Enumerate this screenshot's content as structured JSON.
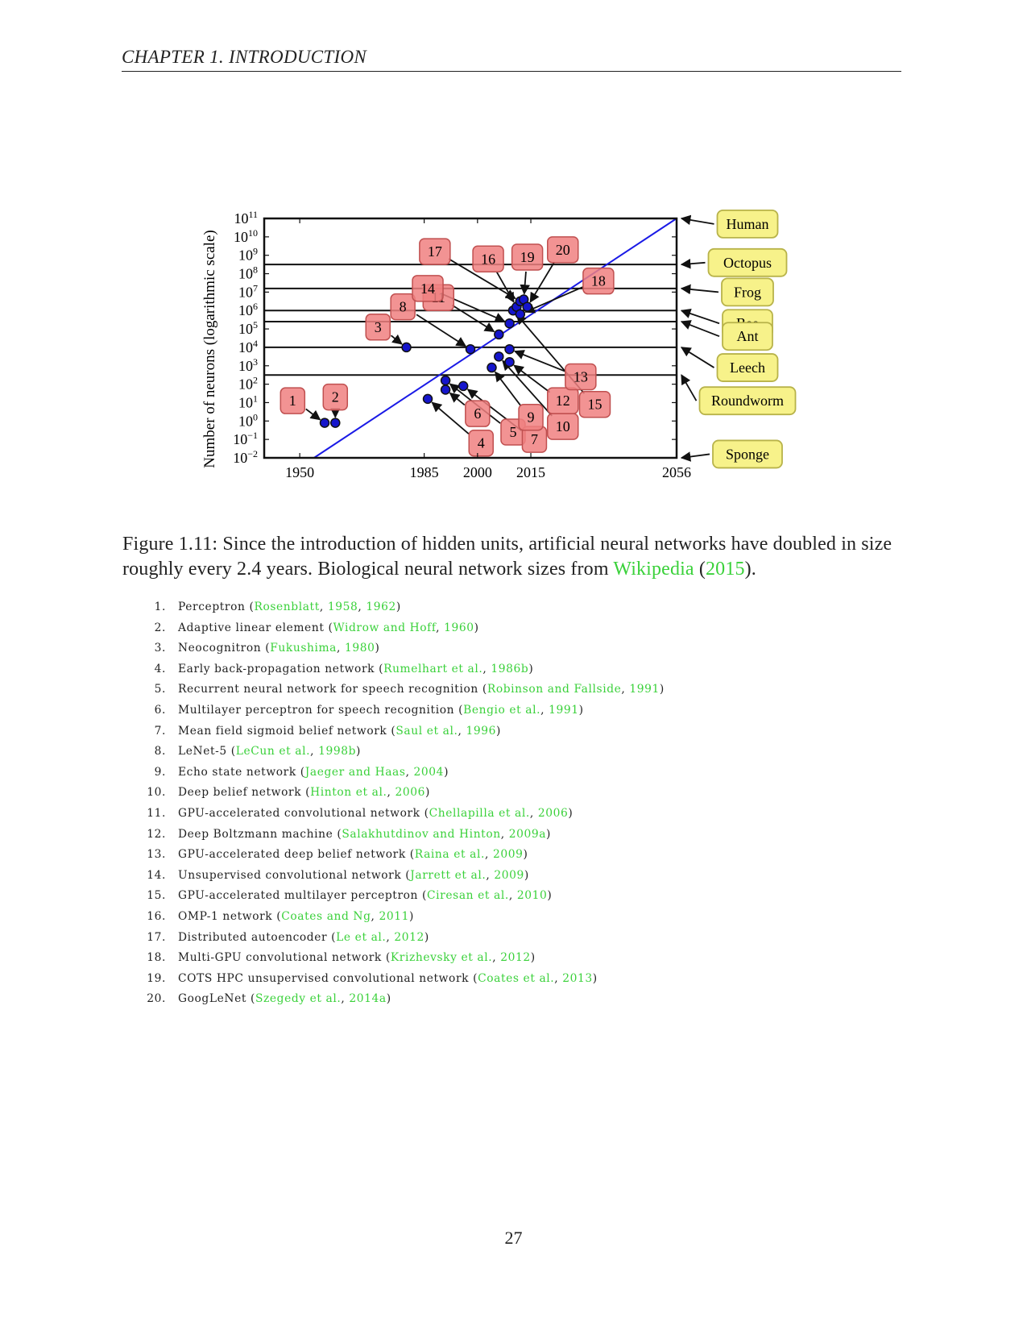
{
  "running_head": "CHAPTER 1.   INTRODUCTION",
  "page_number": "27",
  "caption": {
    "prefix": "Figure 1.11:  Since the introduction of hidden units, artificial neural networks have doubled in size roughly every 2.4 years.  Biological neural network sizes from ",
    "cite_name": "Wikipedia",
    "open_paren": " (",
    "cite_year": "2015",
    "suffix": ")."
  },
  "chart_data": {
    "type": "scatter",
    "ylabel": "Number of neurons (logarithmic scale)",
    "xlabel": "",
    "y_scale": "log10",
    "x_ticks": [
      1950,
      1985,
      2000,
      2015,
      2056
    ],
    "y_ticks": [
      "10^{-2}",
      "10^{-1}",
      "10^{0}",
      "10^{1}",
      "10^{2}",
      "10^{3}",
      "10^{4}",
      "10^{5}",
      "10^{6}",
      "10^{7}",
      "10^{8}",
      "10^{9}",
      "10^{10}",
      "10^{11}"
    ],
    "y_tick_labels": [
      {
        "base": "10",
        "exp": "−2"
      },
      {
        "base": "10",
        "exp": "−1"
      },
      {
        "base": "10",
        "exp": "0"
      },
      {
        "base": "10",
        "exp": "1"
      },
      {
        "base": "10",
        "exp": "2"
      },
      {
        "base": "10",
        "exp": "3"
      },
      {
        "base": "10",
        "exp": "4"
      },
      {
        "base": "10",
        "exp": "5"
      },
      {
        "base": "10",
        "exp": "6"
      },
      {
        "base": "10",
        "exp": "7"
      },
      {
        "base": "10",
        "exp": "8"
      },
      {
        "base": "10",
        "exp": "9"
      },
      {
        "base": "10",
        "exp": "10"
      },
      {
        "base": "10",
        "exp": "11"
      }
    ],
    "xlim": [
      1940,
      2056
    ],
    "ylim_log10": [
      -2,
      11
    ],
    "trend_line": {
      "x": [
        1954,
        2056
      ],
      "log10_y": [
        -2,
        11
      ]
    },
    "networks": [
      {
        "id": "1",
        "year": 1957,
        "log10_neurons": -0.1,
        "label_year": 1948,
        "label_log10": 1.1
      },
      {
        "id": "2",
        "year": 1960,
        "log10_neurons": -0.1,
        "label_year": 1960,
        "label_log10": 1.3
      },
      {
        "id": "3",
        "year": 1980,
        "log10_neurons": 4.0,
        "label_year": 1972,
        "label_log10": 5.1
      },
      {
        "id": "4",
        "year": 1986,
        "log10_neurons": 1.2,
        "label_year": 2001,
        "label_log10": -1.2
      },
      {
        "id": "5",
        "year": 1991,
        "log10_neurons": 2.2,
        "label_year": 2010,
        "label_log10": -0.6
      },
      {
        "id": "6",
        "year": 1991,
        "log10_neurons": 1.7,
        "label_year": 2000,
        "label_log10": 0.4
      },
      {
        "id": "7",
        "year": 1996,
        "log10_neurons": 1.9,
        "label_year": 2016,
        "label_log10": -1.0
      },
      {
        "id": "8",
        "year": 1998,
        "log10_neurons": 3.9,
        "label_year": 1979,
        "label_log10": 6.2
      },
      {
        "id": "9",
        "year": 2004,
        "log10_neurons": 2.9,
        "label_year": 2015,
        "label_log10": 0.2
      },
      {
        "id": "10",
        "year": 2006,
        "log10_neurons": 3.5,
        "label_year": 2024,
        "label_log10": -0.3
      },
      {
        "id": "11",
        "year": 2006,
        "log10_neurons": 4.7,
        "label_year": 1989,
        "label_log10": 6.7
      },
      {
        "id": "12",
        "year": 2009,
        "log10_neurons": 3.2,
        "label_year": 2024,
        "label_log10": 1.1
      },
      {
        "id": "13",
        "year": 2009,
        "log10_neurons": 3.9,
        "label_year": 2029,
        "label_log10": 2.4
      },
      {
        "id": "14",
        "year": 2009,
        "log10_neurons": 5.3,
        "label_year": 1986,
        "label_log10": 7.2
      },
      {
        "id": "15",
        "year": 2010,
        "log10_neurons": 6.0,
        "label_year": 2033,
        "label_log10": 0.9
      },
      {
        "id": "16",
        "year": 2011,
        "log10_neurons": 6.2,
        "label_year": 2003,
        "label_log10": 8.8
      },
      {
        "id": "17",
        "year": 2012,
        "log10_neurons": 6.5,
        "label_year": 1988,
        "label_log10": 9.2
      },
      {
        "id": "18",
        "year": 2012,
        "log10_neurons": 5.8,
        "label_year": 2034,
        "label_log10": 7.6
      },
      {
        "id": "19",
        "year": 2013,
        "log10_neurons": 6.6,
        "label_year": 2014,
        "label_log10": 8.9
      },
      {
        "id": "20",
        "year": 2014,
        "log10_neurons": 6.2,
        "label_year": 2024,
        "label_log10": 9.3
      }
    ],
    "organisms": [
      {
        "name": "Human",
        "log10_neurons": 11.0,
        "label_log10": 10.7
      },
      {
        "name": "Octopus",
        "log10_neurons": 8.5,
        "label_log10": 8.6
      },
      {
        "name": "Frog",
        "log10_neurons": 7.2,
        "label_log10": 7.0
      },
      {
        "name": "Bee",
        "log10_neurons": 6.0,
        "label_log10": 5.3
      },
      {
        "name": "Ant",
        "log10_neurons": 5.4,
        "label_log10": 4.6
      },
      {
        "name": "Leech",
        "log10_neurons": 4.0,
        "label_log10": 2.9
      },
      {
        "name": "Roundworm",
        "log10_neurons": 2.5,
        "label_log10": 1.1
      },
      {
        "name": "Sponge",
        "log10_neurons": -2.0,
        "label_log10": -1.8
      }
    ],
    "colors": {
      "network_box": "#f08080",
      "organism_box": "#f7f28a",
      "trend": "#1a1ae6",
      "point": "#1515cc"
    }
  },
  "references": [
    {
      "num": "1.",
      "name": "Perceptron",
      "parts": [
        [
          "Rosenblatt",
          true
        ],
        [
          ", ",
          false
        ],
        [
          "1958",
          true
        ],
        [
          ", ",
          false
        ],
        [
          "1962",
          true
        ]
      ]
    },
    {
      "num": "2.",
      "name": "Adaptive linear element",
      "parts": [
        [
          "Widrow and Hoff",
          true
        ],
        [
          ", ",
          false
        ],
        [
          "1960",
          true
        ]
      ]
    },
    {
      "num": "3.",
      "name": "Neocognitron",
      "parts": [
        [
          "Fukushima",
          true
        ],
        [
          ", ",
          false
        ],
        [
          "1980",
          true
        ]
      ]
    },
    {
      "num": "4.",
      "name": "Early back-propagation network",
      "parts": [
        [
          "Rumelhart et al.",
          true
        ],
        [
          ", ",
          false
        ],
        [
          "1986b",
          true
        ]
      ]
    },
    {
      "num": "5.",
      "name": "Recurrent neural network for speech recognition",
      "parts": [
        [
          "Robinson and Fallside",
          true
        ],
        [
          ", ",
          false
        ],
        [
          "1991",
          true
        ]
      ]
    },
    {
      "num": "6.",
      "name": "Multilayer perceptron for speech recognition",
      "parts": [
        [
          "Bengio et al.",
          true
        ],
        [
          ", ",
          false
        ],
        [
          "1991",
          true
        ]
      ]
    },
    {
      "num": "7.",
      "name": "Mean field sigmoid belief network",
      "parts": [
        [
          "Saul et al.",
          true
        ],
        [
          ", ",
          false
        ],
        [
          "1996",
          true
        ]
      ]
    },
    {
      "num": "8.",
      "name": "LeNet-5",
      "parts": [
        [
          "LeCun et al.",
          true
        ],
        [
          ", ",
          false
        ],
        [
          "1998b",
          true
        ]
      ]
    },
    {
      "num": "9.",
      "name": "Echo state network",
      "parts": [
        [
          "Jaeger and Haas",
          true
        ],
        [
          ", ",
          false
        ],
        [
          "2004",
          true
        ]
      ]
    },
    {
      "num": "10.",
      "name": "Deep belief network",
      "parts": [
        [
          "Hinton et al.",
          true
        ],
        [
          ", ",
          false
        ],
        [
          "2006",
          true
        ]
      ]
    },
    {
      "num": "11.",
      "name": "GPU-accelerated convolutional network",
      "parts": [
        [
          "Chellapilla et al.",
          true
        ],
        [
          ", ",
          false
        ],
        [
          "2006",
          true
        ]
      ]
    },
    {
      "num": "12.",
      "name": "Deep Boltzmann machine",
      "parts": [
        [
          "Salakhutdinov and Hinton",
          true
        ],
        [
          ", ",
          false
        ],
        [
          "2009a",
          true
        ]
      ]
    },
    {
      "num": "13.",
      "name": "GPU-accelerated deep belief network",
      "parts": [
        [
          "Raina et al.",
          true
        ],
        [
          ", ",
          false
        ],
        [
          "2009",
          true
        ]
      ]
    },
    {
      "num": "14.",
      "name": "Unsupervised convolutional network",
      "parts": [
        [
          "Jarrett et al.",
          true
        ],
        [
          ", ",
          false
        ],
        [
          "2009",
          true
        ]
      ]
    },
    {
      "num": "15.",
      "name": "GPU-accelerated multilayer perceptron",
      "parts": [
        [
          "Ciresan et al.",
          true
        ],
        [
          ", ",
          false
        ],
        [
          "2010",
          true
        ]
      ]
    },
    {
      "num": "16.",
      "name": "OMP-1 network",
      "parts": [
        [
          "Coates and Ng",
          true
        ],
        [
          ", ",
          false
        ],
        [
          "2011",
          true
        ]
      ]
    },
    {
      "num": "17.",
      "name": "Distributed autoencoder",
      "parts": [
        [
          "Le et al.",
          true
        ],
        [
          ", ",
          false
        ],
        [
          "2012",
          true
        ]
      ]
    },
    {
      "num": "18.",
      "name": "Multi-GPU convolutional network",
      "parts": [
        [
          "Krizhevsky et al.",
          true
        ],
        [
          ", ",
          false
        ],
        [
          "2012",
          true
        ]
      ]
    },
    {
      "num": "19.",
      "name": "COTS HPC unsupervised convolutional network",
      "parts": [
        [
          "Coates et al.",
          true
        ],
        [
          ", ",
          false
        ],
        [
          "2013",
          true
        ]
      ]
    },
    {
      "num": "20.",
      "name": "GoogLeNet",
      "parts": [
        [
          "Szegedy et al.",
          true
        ],
        [
          ", ",
          false
        ],
        [
          "2014a",
          true
        ]
      ]
    }
  ]
}
